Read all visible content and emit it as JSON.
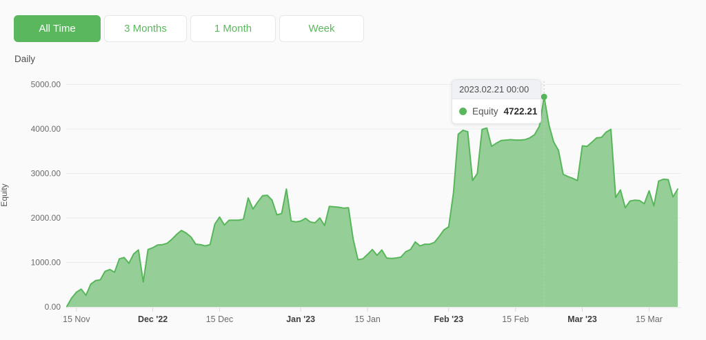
{
  "page_background": "#fafafa",
  "time_range_buttons": [
    {
      "label": "All Time",
      "active": true
    },
    {
      "label": "3 Months",
      "active": false
    },
    {
      "label": "1 Month",
      "active": false
    },
    {
      "label": "Week",
      "active": false
    }
  ],
  "frequency_label": "Daily",
  "tooltip": {
    "date": "2023.02.21 00:00",
    "series": "Equity",
    "value": "4722.21"
  },
  "colors": {
    "accent_green": "#5bb75e",
    "area_fill": "#8ccb8e",
    "line_green": "#57b65a",
    "gridline": "#ececec",
    "axis_line": "#e2e2e2",
    "tick_text": "#6b6b6b",
    "tick_text_bold": "#3f3f3f",
    "dashed_guide": "#c3c5c9"
  },
  "chart_data": {
    "type": "area",
    "title": "",
    "xlabel": "",
    "ylabel": "Equity",
    "x_start_date": "2022-11-13",
    "x_interval": "1 day",
    "ylim": [
      0,
      5000
    ],
    "grid": true,
    "legend": false,
    "y_ticks": [
      {
        "value": 0,
        "label": "0.00"
      },
      {
        "value": 1000,
        "label": "1000.00"
      },
      {
        "value": 2000,
        "label": "2000.00"
      },
      {
        "value": 3000,
        "label": "3000.00"
      },
      {
        "value": 4000,
        "label": "4000.00"
      },
      {
        "value": 5000,
        "label": "5000.00"
      }
    ],
    "x_ticks": [
      {
        "index": 2,
        "label": "15 Nov",
        "bold": false
      },
      {
        "index": 18,
        "label": "Dec '22",
        "bold": true
      },
      {
        "index": 32,
        "label": "15 Dec",
        "bold": false
      },
      {
        "index": 49,
        "label": "Jan '23",
        "bold": true
      },
      {
        "index": 63,
        "label": "15 Jan",
        "bold": false
      },
      {
        "index": 80,
        "label": "Feb '23",
        "bold": true
      },
      {
        "index": 94,
        "label": "15 Feb",
        "bold": false
      },
      {
        "index": 108,
        "label": "Mar '23",
        "bold": true
      },
      {
        "index": 122,
        "label": "15 Mar",
        "bold": false
      }
    ],
    "series": [
      {
        "name": "Equity",
        "line_color": "#57b65a",
        "fill_color": "#8ccb8e",
        "values": [
          10,
          200,
          330,
          400,
          260,
          510,
          590,
          610,
          800,
          840,
          780,
          1080,
          1110,
          980,
          1190,
          1280,
          560,
          1290,
          1330,
          1390,
          1400,
          1430,
          1520,
          1630,
          1720,
          1660,
          1570,
          1410,
          1400,
          1370,
          1400,
          1860,
          2020,
          1840,
          1950,
          1950,
          1950,
          1970,
          2450,
          2200,
          2360,
          2500,
          2510,
          2400,
          2070,
          2100,
          2650,
          1930,
          1910,
          1930,
          1990,
          1910,
          1890,
          2000,
          1830,
          2260,
          2250,
          2240,
          2220,
          2230,
          1520,
          1060,
          1080,
          1180,
          1290,
          1160,
          1280,
          1100,
          1090,
          1100,
          1120,
          1240,
          1290,
          1460,
          1370,
          1410,
          1410,
          1450,
          1580,
          1730,
          1800,
          2560,
          3880,
          3970,
          3940,
          2840,
          3000,
          3990,
          4020,
          3610,
          3680,
          3740,
          3750,
          3760,
          3750,
          3750,
          3760,
          3800,
          3870,
          4060,
          4722.21,
          4100,
          3710,
          3520,
          2980,
          2930,
          2890,
          2840,
          3620,
          3610,
          3700,
          3800,
          3810,
          3930,
          3990,
          2460,
          2630,
          2230,
          2380,
          2400,
          2390,
          2320,
          2610,
          2270,
          2830,
          2870,
          2860,
          2470,
          2650
        ]
      }
    ],
    "highlight": {
      "index": 100,
      "date": "2023.02.21 00:00",
      "value": 4722.21
    }
  }
}
